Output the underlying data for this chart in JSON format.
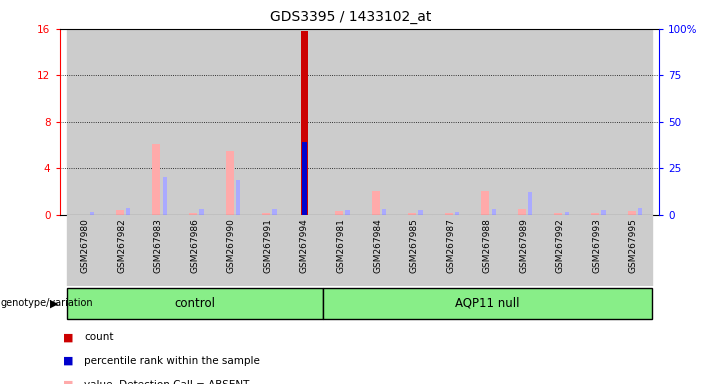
{
  "title": "GDS3395 / 1433102_at",
  "samples": [
    "GSM267980",
    "GSM267982",
    "GSM267983",
    "GSM267986",
    "GSM267990",
    "GSM267991",
    "GSM267994",
    "GSM267981",
    "GSM267984",
    "GSM267985",
    "GSM267987",
    "GSM267988",
    "GSM267989",
    "GSM267992",
    "GSM267993",
    "GSM267995"
  ],
  "groups": [
    "control",
    "control",
    "control",
    "control",
    "control",
    "control",
    "control",
    "AQP11 null",
    "AQP11 null",
    "AQP11 null",
    "AQP11 null",
    "AQP11 null",
    "AQP11 null",
    "AQP11 null",
    "AQP11 null",
    "AQP11 null"
  ],
  "count_values": [
    0,
    0,
    0,
    0,
    0,
    0,
    15.8,
    0,
    0,
    0,
    0,
    0,
    0,
    0,
    0,
    0
  ],
  "rank_values": [
    0,
    0,
    0,
    0,
    0,
    0,
    6.3,
    0,
    0,
    0,
    0,
    0,
    0,
    0,
    0,
    0
  ],
  "absent_value": [
    0,
    0.4,
    6.1,
    0.15,
    5.5,
    0.15,
    0,
    0.35,
    2.1,
    0.15,
    0.15,
    2.1,
    0.5,
    0.15,
    0.15,
    0.35
  ],
  "absent_rank": [
    0.3,
    0.6,
    3.3,
    0.5,
    3.0,
    0.5,
    0,
    0.4,
    0.5,
    0.4,
    0.3,
    0.5,
    2.0,
    0.3,
    0.4,
    0.6
  ],
  "ylim_left": [
    0,
    16
  ],
  "ylim_right": [
    0,
    100
  ],
  "yticks_left": [
    0,
    4,
    8,
    12,
    16
  ],
  "yticks_right": [
    0,
    25,
    50,
    75,
    100
  ],
  "ytick_labels_left": [
    "0",
    "4",
    "8",
    "12",
    "16"
  ],
  "ytick_labels_right": [
    "0",
    "25",
    "50",
    "75",
    "100%"
  ],
  "color_count": "#cc0000",
  "color_rank": "#0000cc",
  "color_absent_value": "#ffaaaa",
  "color_absent_rank": "#aaaaff",
  "color_group_bg": "#88ee88",
  "color_axis_bg": "#cccccc",
  "genotype_label": "genotype/variation",
  "n_control": 7,
  "n_total": 16
}
